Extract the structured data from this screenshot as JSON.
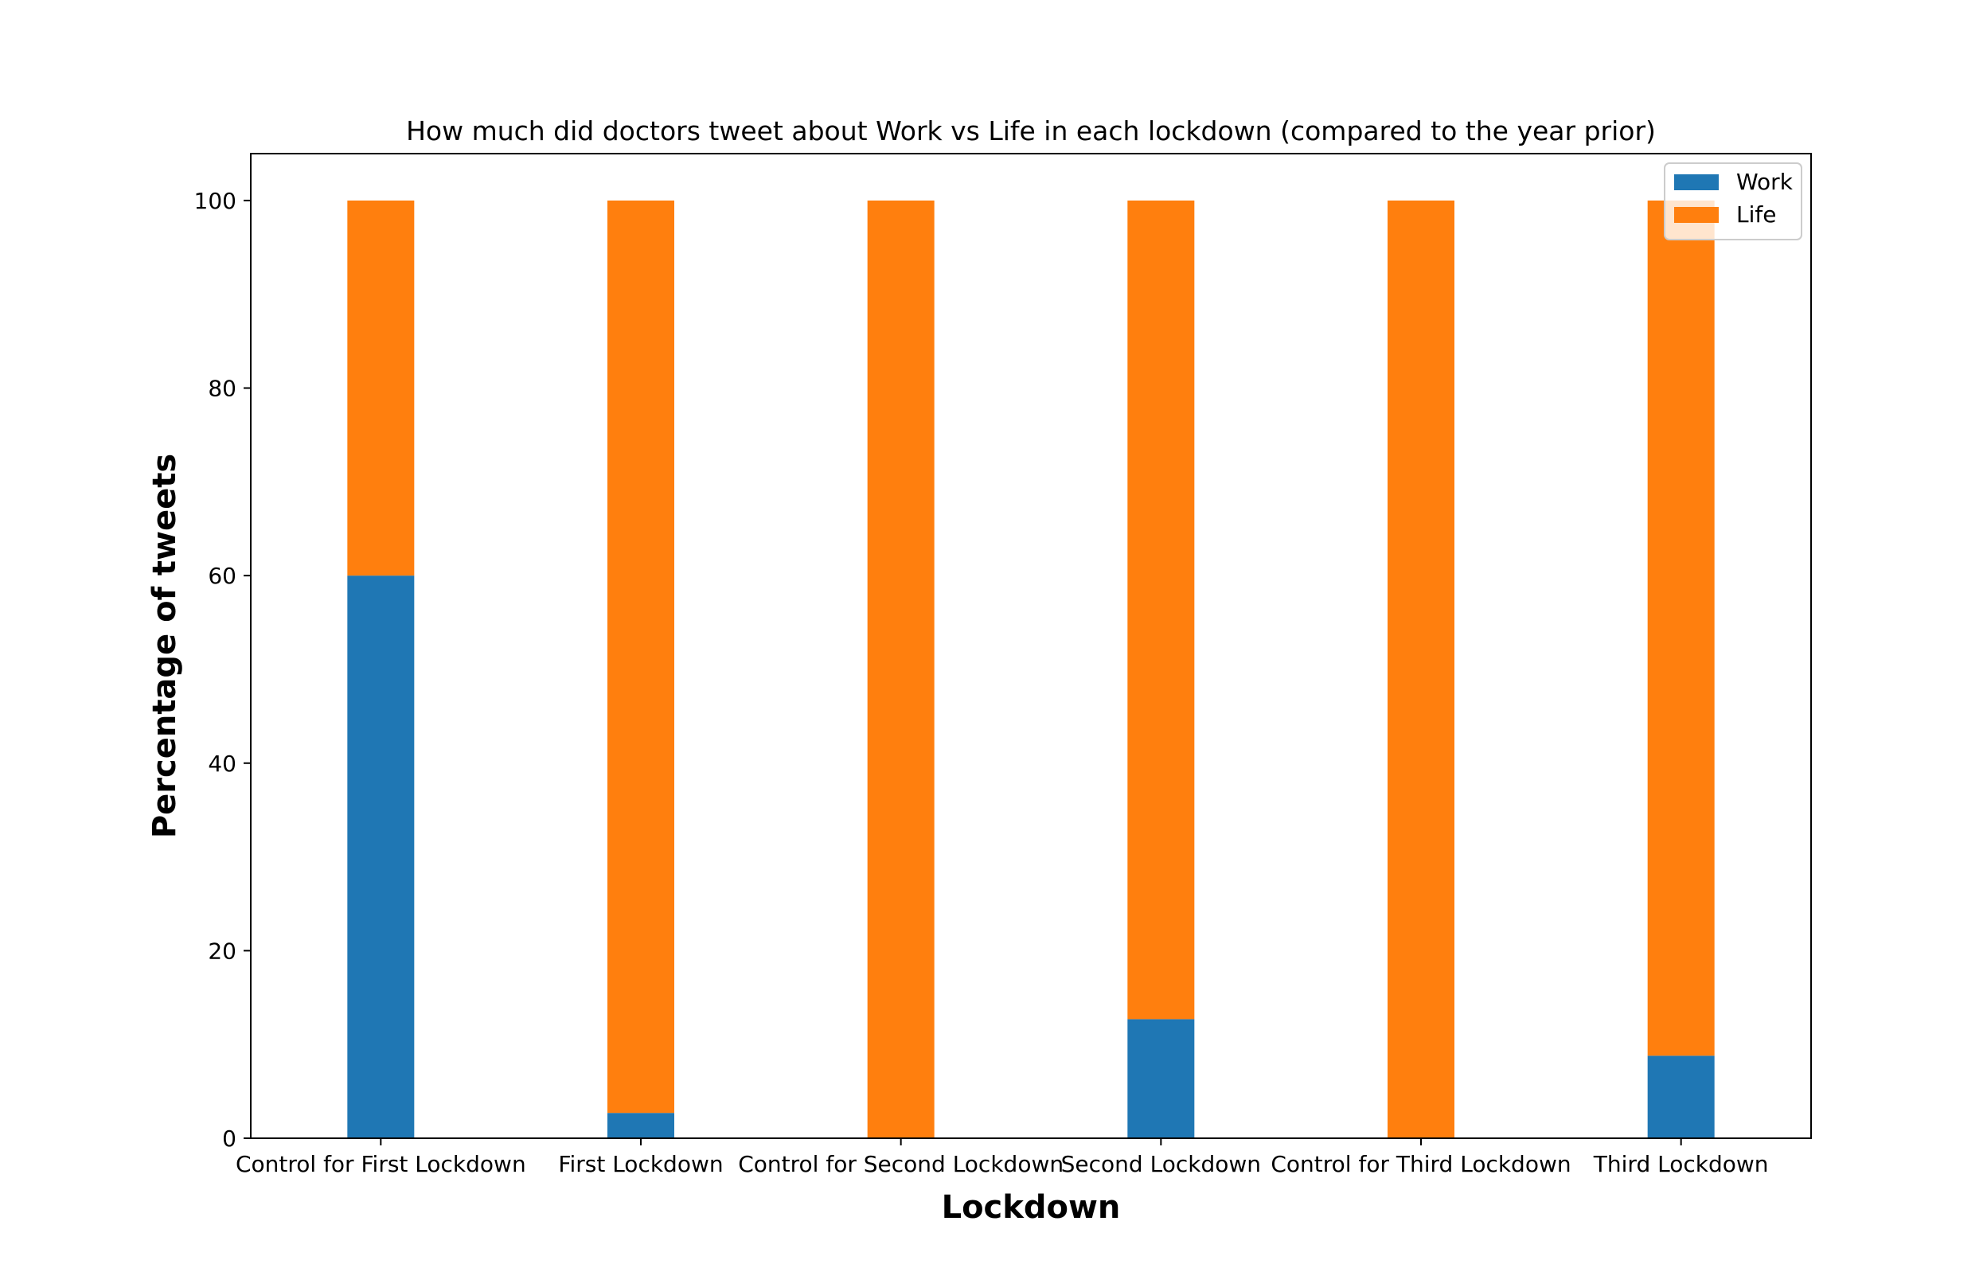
{
  "chart_data": {
    "type": "bar",
    "stacked": true,
    "title": "How much did doctors tweet about Work vs Life in each lockdown (compared to the year prior)",
    "xlabel": "Lockdown",
    "ylabel": "Percentage of tweets",
    "categories": [
      "Control for First Lockdown",
      "First Lockdown",
      "Control for Second Lockdown",
      "Second Lockdown",
      "Control for Third Lockdown",
      "Third Lockdown"
    ],
    "series": [
      {
        "name": "Work",
        "color": "#1f77b4",
        "values": [
          60,
          2.7,
          0,
          12.7,
          0,
          8.8
        ]
      },
      {
        "name": "Life",
        "color": "#ff7f0e",
        "values": [
          40,
          97.3,
          100,
          87.3,
          100,
          91.2
        ]
      }
    ],
    "ylim": [
      0,
      105
    ],
    "yticks": [
      0,
      20,
      40,
      60,
      80,
      100
    ],
    "grid": false,
    "legend": "top-right"
  }
}
